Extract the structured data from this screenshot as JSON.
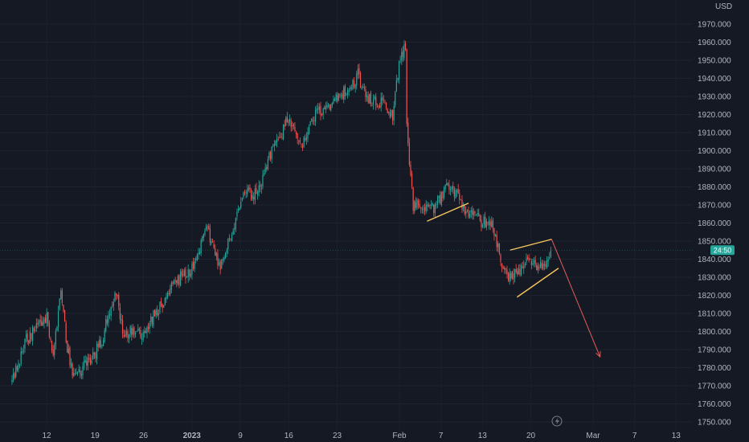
{
  "chart_data": {
    "type": "candlestick",
    "title": "",
    "currency_label": "USD",
    "xlabel": "",
    "ylabel": "",
    "ylim": [
      1745,
      1978
    ],
    "y_ticks": [
      1750,
      1760,
      1770,
      1780,
      1790,
      1800,
      1810,
      1820,
      1830,
      1840,
      1850,
      1860,
      1870,
      1880,
      1890,
      1900,
      1910,
      1920,
      1930,
      1940,
      1950,
      1960,
      1970
    ],
    "y_tick_labels": [
      "1750.000",
      "1760.000",
      "1770.000",
      "1780.000",
      "1790.000",
      "1800.000",
      "1810.000",
      "1820.000",
      "1830.000",
      "1840.000",
      "1850.000",
      "1860.000",
      "1870.000",
      "1880.000",
      "1890.000",
      "1900.000",
      "1910.000",
      "1920.000",
      "1930.000",
      "1940.000",
      "1950.000",
      "1960.000",
      "1970.000"
    ],
    "x_tick_labels": [
      {
        "label": "12",
        "date": "2022-12-12",
        "bold": false
      },
      {
        "label": "19",
        "date": "2022-12-19",
        "bold": false
      },
      {
        "label": "26",
        "date": "2022-12-26",
        "bold": false
      },
      {
        "label": "2023",
        "date": "2023-01-02",
        "bold": true
      },
      {
        "label": "9",
        "date": "2023-01-09",
        "bold": false
      },
      {
        "label": "16",
        "date": "2023-01-16",
        "bold": false
      },
      {
        "label": "23",
        "date": "2023-01-23",
        "bold": false
      },
      {
        "label": "Feb",
        "date": "2023-02-01",
        "bold": false
      },
      {
        "label": "7",
        "date": "2023-02-07",
        "bold": false
      },
      {
        "label": "13",
        "date": "2023-02-13",
        "bold": false
      },
      {
        "label": "20",
        "date": "2023-02-20",
        "bold": false
      },
      {
        "label": "Mar",
        "date": "2023-03-01",
        "bold": false
      },
      {
        "label": "7",
        "date": "2023-03-07",
        "bold": false
      },
      {
        "label": "13",
        "date": "2023-03-13",
        "bold": false
      }
    ],
    "last_price": 1845.0,
    "last_price_label": "24:50",
    "price_path": [
      [
        "2022-12-07",
        1772
      ],
      [
        "2022-12-08",
        1782
      ],
      [
        "2022-12-09",
        1795
      ],
      [
        "2022-12-12",
        1808
      ],
      [
        "2022-12-13",
        1785
      ],
      [
        "2022-12-14",
        1822
      ],
      [
        "2022-12-15",
        1790
      ],
      [
        "2022-12-16",
        1775
      ],
      [
        "2022-12-19",
        1788
      ],
      [
        "2022-12-20",
        1795
      ],
      [
        "2022-12-21",
        1810
      ],
      [
        "2022-12-22",
        1822
      ],
      [
        "2022-12-23",
        1800
      ],
      [
        "2022-12-26",
        1798
      ],
      [
        "2022-12-27",
        1805
      ],
      [
        "2022-12-28",
        1812
      ],
      [
        "2022-12-29",
        1815
      ],
      [
        "2022-12-30",
        1825
      ],
      [
        "2023-01-02",
        1835
      ],
      [
        "2023-01-03",
        1845
      ],
      [
        "2023-01-04",
        1860
      ],
      [
        "2023-01-05",
        1848
      ],
      [
        "2023-01-06",
        1835
      ],
      [
        "2023-01-09",
        1870
      ],
      [
        "2023-01-10",
        1878
      ],
      [
        "2023-01-11",
        1875
      ],
      [
        "2023-01-12",
        1880
      ],
      [
        "2023-01-13",
        1895
      ],
      [
        "2023-01-16",
        1918
      ],
      [
        "2023-01-17",
        1910
      ],
      [
        "2023-01-18",
        1905
      ],
      [
        "2023-01-19",
        1915
      ],
      [
        "2023-01-20",
        1920
      ],
      [
        "2023-01-23",
        1930
      ],
      [
        "2023-01-24",
        1932
      ],
      [
        "2023-01-25",
        1935
      ],
      [
        "2023-01-26",
        1942
      ],
      [
        "2023-01-27",
        1930
      ],
      [
        "2023-01-30",
        1925
      ],
      [
        "2023-01-31",
        1918
      ],
      [
        "2023-02-01",
        1950
      ],
      [
        "2023-02-02",
        1960
      ],
      [
        "2023-02-02",
        1915
      ],
      [
        "2023-02-03",
        1870
      ],
      [
        "2023-02-06",
        1868
      ],
      [
        "2023-02-07",
        1875
      ],
      [
        "2023-02-08",
        1880
      ],
      [
        "2023-02-09",
        1878
      ],
      [
        "2023-02-10",
        1870
      ],
      [
        "2023-02-13",
        1860
      ],
      [
        "2023-02-14",
        1862
      ],
      [
        "2023-02-15",
        1850
      ],
      [
        "2023-02-16",
        1835
      ],
      [
        "2023-02-17",
        1830
      ],
      [
        "2023-02-20",
        1840
      ],
      [
        "2023-02-21",
        1835
      ],
      [
        "2023-02-22",
        1838
      ],
      [
        "2023-02-23",
        1845
      ]
    ],
    "annotations": [
      {
        "type": "trendline",
        "color": "#f7c55d",
        "from": [
          "2023-02-05",
          1861
        ],
        "to": [
          "2023-02-11",
          1871
        ]
      },
      {
        "type": "trendline",
        "color": "#f7c55d",
        "from": [
          "2023-02-17",
          1845
        ],
        "to": [
          "2023-02-23",
          1851
        ]
      },
      {
        "type": "trendline",
        "color": "#f7c55d",
        "from": [
          "2023-02-18",
          1819
        ],
        "to": [
          "2023-02-24",
          1835
        ]
      },
      {
        "type": "arrow",
        "color": "#e05a5a",
        "from": [
          "2023-02-23",
          1851
        ],
        "to": [
          "2023-03-02",
          1786
        ]
      }
    ],
    "grid": true,
    "legend": "none"
  },
  "colors": {
    "background": "#151924",
    "up": "#26a69a",
    "down": "#ef5350",
    "price_tag": "#26a69a",
    "annotation": "#f7c55d",
    "arrow": "#e05a5a"
  },
  "icons": {
    "bottom_toolbar": "lightning-icon"
  }
}
